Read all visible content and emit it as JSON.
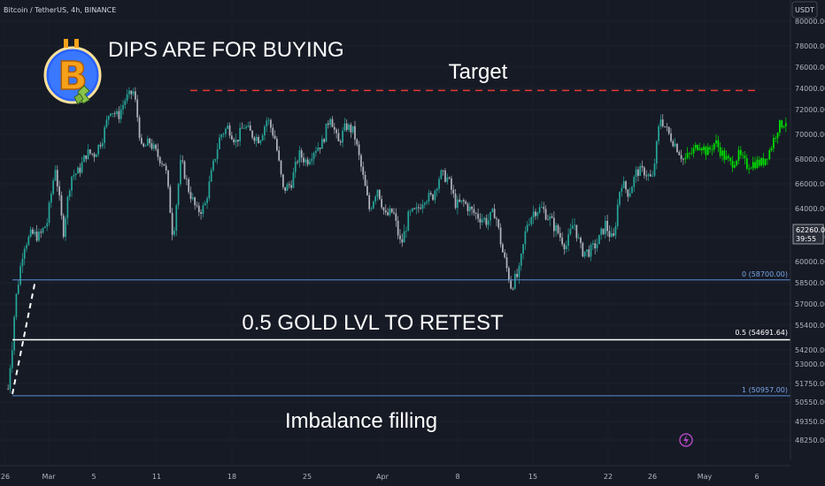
{
  "header": {
    "symbol": "Bitcoin / TetherUS, 4h, BINANCE",
    "currency_label": "USDT"
  },
  "price_tag": {
    "price": "62260.01",
    "countdown": "39:55"
  },
  "annotations": {
    "headline": "DIPS ARE FOR BUYING",
    "target_label": "Target",
    "gold_label": "0.5 GOLD LVL TO RETEST",
    "imbalance_label": "Imbalance filling"
  },
  "fib": {
    "level_0": "0 (58700.00)",
    "level_05": "0.5 (54691.64)",
    "level_1": "1 (50957.00)"
  },
  "colors": {
    "background": "#161a25",
    "candle_up": "#26a69a",
    "candle_down": "#b2b5be",
    "highlight": "#00e600",
    "target_line": "#e53935",
    "fib_line": "#5b8fd6",
    "gold_line": "#ffffff"
  },
  "logo": {
    "icon": "bitcoin-logo-icon",
    "letter": "B"
  },
  "chart_data": {
    "type": "candlestick",
    "yaxis_ticks": [
      "80000.00",
      "78000.00",
      "76000.00",
      "74000.00",
      "72000.00",
      "70000.00",
      "68000.00",
      "66000.00",
      "64000.00",
      "62000.00",
      "60000.00",
      "58500.00",
      "57000.00",
      "55400.00",
      "54200.00",
      "53000.00",
      "51750.00",
      "50550.00",
      "49350.00",
      "48250.00"
    ],
    "xaxis_ticks": [
      "26",
      "Mar",
      "5",
      "11",
      "18",
      "25",
      "Apr",
      "8",
      "15",
      "22",
      "26",
      "May",
      "6"
    ],
    "levels": {
      "target": 73800,
      "fib_0": 58700,
      "fib_05": 54691.64,
      "fib_1": 50957
    },
    "price_path": [
      {
        "t": "Feb 26",
        "v": 51400
      },
      {
        "t": "Feb 27",
        "v": 57400
      },
      {
        "t": "Feb 28",
        "v": 61300
      },
      {
        "t": "Mar 1",
        "v": 62200
      },
      {
        "t": "Mar 2",
        "v": 62000
      },
      {
        "t": "Mar 3",
        "v": 63100
      },
      {
        "t": "Mar 4",
        "v": 67400
      },
      {
        "t": "Mar 5",
        "v": 62200
      },
      {
        "t": "Mar 6",
        "v": 66600
      },
      {
        "t": "Mar 7",
        "v": 67000
      },
      {
        "t": "Mar 8",
        "v": 68500
      },
      {
        "t": "Mar 9",
        "v": 68400
      },
      {
        "t": "Mar 10",
        "v": 69700
      },
      {
        "t": "Mar 11",
        "v": 72100
      },
      {
        "t": "Mar 12",
        "v": 71400
      },
      {
        "t": "Mar 13",
        "v": 73100
      },
      {
        "t": "Mar 14",
        "v": 73700
      },
      {
        "t": "Mar 15",
        "v": 68700
      },
      {
        "t": "Mar 16",
        "v": 69400
      },
      {
        "t": "Mar 17",
        "v": 68300
      },
      {
        "t": "Mar 18",
        "v": 67500
      },
      {
        "t": "Mar 19",
        "v": 61900
      },
      {
        "t": "Mar 20",
        "v": 67900
      },
      {
        "t": "Mar 21",
        "v": 65500
      },
      {
        "t": "Mar 22",
        "v": 63800
      },
      {
        "t": "Mar 23",
        "v": 64100
      },
      {
        "t": "Mar 24",
        "v": 67200
      },
      {
        "t": "Mar 25",
        "v": 69900
      },
      {
        "t": "Mar 26",
        "v": 70600
      },
      {
        "t": "Mar 27",
        "v": 69400
      },
      {
        "t": "Mar 28",
        "v": 70700
      },
      {
        "t": "Mar 29",
        "v": 70000
      },
      {
        "t": "Mar 30",
        "v": 69600
      },
      {
        "t": "Mar 31",
        "v": 71300
      },
      {
        "t": "Apr 1",
        "v": 69600
      },
      {
        "t": "Apr 2",
        "v": 65500
      },
      {
        "t": "Apr 3",
        "v": 66000
      },
      {
        "t": "Apr 4",
        "v": 68400
      },
      {
        "t": "Apr 5",
        "v": 67800
      },
      {
        "t": "Apr 6",
        "v": 68800
      },
      {
        "t": "Apr 7",
        "v": 69300
      },
      {
        "t": "Apr 8",
        "v": 71600
      },
      {
        "t": "Apr 9",
        "v": 69200
      },
      {
        "t": "Apr 10",
        "v": 70700
      },
      {
        "t": "Apr 11",
        "v": 70200
      },
      {
        "t": "Apr 12",
        "v": 67100
      },
      {
        "t": "Apr 13",
        "v": 63900
      },
      {
        "t": "Apr 14",
        "v": 65700
      },
      {
        "t": "Apr 15",
        "v": 63400
      },
      {
        "t": "Apr 16",
        "v": 63800
      },
      {
        "t": "Apr 17",
        "v": 61300
      },
      {
        "t": "Apr 18",
        "v": 63500
      },
      {
        "t": "Apr 19",
        "v": 63800
      },
      {
        "t": "Apr 20",
        "v": 64900
      },
      {
        "t": "Apr 21",
        "v": 64900
      },
      {
        "t": "Apr 22",
        "v": 66800
      },
      {
        "t": "Apr 23",
        "v": 66400
      },
      {
        "t": "Apr 24",
        "v": 64300
      },
      {
        "t": "Apr 25",
        "v": 64500
      },
      {
        "t": "Apr 26",
        "v": 63800
      },
      {
        "t": "Apr 27",
        "v": 63400
      },
      {
        "t": "Apr 28",
        "v": 63100
      },
      {
        "t": "Apr 29",
        "v": 63800
      },
      {
        "t": "Apr 30",
        "v": 60600
      },
      {
        "t": "May 1",
        "v": 58300
      },
      {
        "t": "May 2",
        "v": 59100
      },
      {
        "t": "May 3",
        "v": 62900
      },
      {
        "t": "May 4",
        "v": 63900
      },
      {
        "t": "May 5",
        "v": 64000
      },
      {
        "t": "May 6",
        "v": 63200
      },
      {
        "t": "May 7",
        "v": 62300
      },
      {
        "t": "May 8",
        "v": 61200
      },
      {
        "t": "May 9",
        "v": 63100
      },
      {
        "t": "May 10",
        "v": 60800
      },
      {
        "t": "May 11",
        "v": 60800
      },
      {
        "t": "May 12",
        "v": 61500
      },
      {
        "t": "May 13",
        "v": 62900
      },
      {
        "t": "May 14",
        "v": 61600
      },
      {
        "t": "May 15",
        "v": 66200
      },
      {
        "t": "May 16",
        "v": 65200
      },
      {
        "t": "May 17",
        "v": 67000
      },
      {
        "t": "May 18",
        "v": 67000
      },
      {
        "t": "May 19",
        "v": 66300
      },
      {
        "t": "May 20",
        "v": 71400
      },
      {
        "t": "May 21",
        "v": 70100
      },
      {
        "t": "May 22",
        "v": 69100
      },
      {
        "t": "May 23",
        "v": 67900
      },
      {
        "t": "May 24",
        "v": 68500
      },
      {
        "t": "May 25",
        "v": 69300
      },
      {
        "t": "May 26",
        "v": 68500
      },
      {
        "t": "May 27",
        "v": 69400
      },
      {
        "t": "May 28",
        "v": 68300
      },
      {
        "t": "May 29",
        "v": 67600
      },
      {
        "t": "May 30",
        "v": 68300
      },
      {
        "t": "May 31",
        "v": 67500
      },
      {
        "t": "Jun 1",
        "v": 67700
      },
      {
        "t": "Jun 2",
        "v": 67700
      },
      {
        "t": "Jun 3",
        "v": 68800
      },
      {
        "t": "Jun 4",
        "v": 70600
      },
      {
        "t": "Jun 5",
        "v": 71100
      }
    ]
  }
}
